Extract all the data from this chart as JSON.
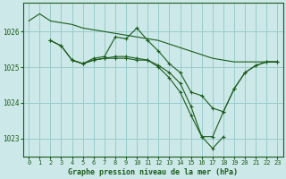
{
  "background_color": "#cce8e8",
  "grid_color": "#99cccc",
  "line_color": "#1a5c1a",
  "title": "Graphe pression niveau de la mer (hPa)",
  "xlim": [
    -0.5,
    23.5
  ],
  "ylim": [
    1022.5,
    1026.8
  ],
  "yticks": [
    1023,
    1024,
    1025,
    1026
  ],
  "xticks": [
    0,
    1,
    2,
    3,
    4,
    5,
    6,
    7,
    8,
    9,
    10,
    11,
    12,
    13,
    14,
    15,
    16,
    17,
    18,
    19,
    20,
    21,
    22,
    23
  ],
  "series": [
    {
      "x": [
        0,
        1,
        2,
        3,
        4,
        5,
        6,
        7,
        8,
        9,
        10,
        11,
        12,
        13,
        14,
        15,
        16,
        17,
        18,
        19,
        20,
        21,
        22,
        23
      ],
      "y": [
        1026.3,
        1026.5,
        1026.3,
        1026.25,
        1026.2,
        1026.1,
        1026.05,
        1026.0,
        1025.95,
        1025.9,
        1025.85,
        1025.8,
        1025.75,
        1025.65,
        1025.55,
        1025.45,
        1025.35,
        1025.25,
        1025.2,
        1025.15,
        1025.15,
        1025.15,
        1025.15,
        1025.15
      ],
      "has_markers": false
    },
    {
      "x": [
        2,
        3,
        4,
        5,
        6,
        7,
        8,
        9,
        10,
        11,
        12,
        13,
        14,
        15,
        16,
        17,
        18,
        19,
        20,
        21,
        22,
        23
      ],
      "y": [
        1025.75,
        1025.6,
        1025.2,
        1025.1,
        1025.25,
        1025.3,
        1025.85,
        1025.8,
        1026.1,
        1025.75,
        1025.45,
        1025.1,
        1024.85,
        1024.3,
        1024.2,
        1023.85,
        1023.75,
        1024.4,
        1024.85,
        1025.05,
        1025.15,
        1025.15
      ],
      "has_markers": true
    },
    {
      "x": [
        2,
        3,
        4,
        5,
        6,
        7,
        8,
        9,
        10,
        11,
        12,
        13,
        14,
        15,
        16,
        17,
        18
      ],
      "y": [
        1025.75,
        1025.6,
        1025.2,
        1025.1,
        1025.2,
        1025.25,
        1025.3,
        1025.3,
        1025.25,
        1025.2,
        1025.0,
        1024.7,
        1024.3,
        1023.65,
        1023.05,
        1022.72,
        1023.05
      ],
      "has_markers": true
    },
    {
      "x": [
        4,
        5,
        6,
        7,
        8,
        9,
        10,
        11,
        12,
        13,
        14,
        15,
        16,
        17,
        18,
        19,
        20,
        21,
        22,
        23
      ],
      "y": [
        1025.2,
        1025.1,
        1025.2,
        1025.25,
        1025.25,
        1025.25,
        1025.2,
        1025.2,
        1025.05,
        1024.85,
        1024.55,
        1023.9,
        1023.05,
        1023.05,
        1023.75,
        1024.4,
        1024.85,
        1025.05,
        1025.15,
        1025.15
      ],
      "has_markers": true
    }
  ]
}
